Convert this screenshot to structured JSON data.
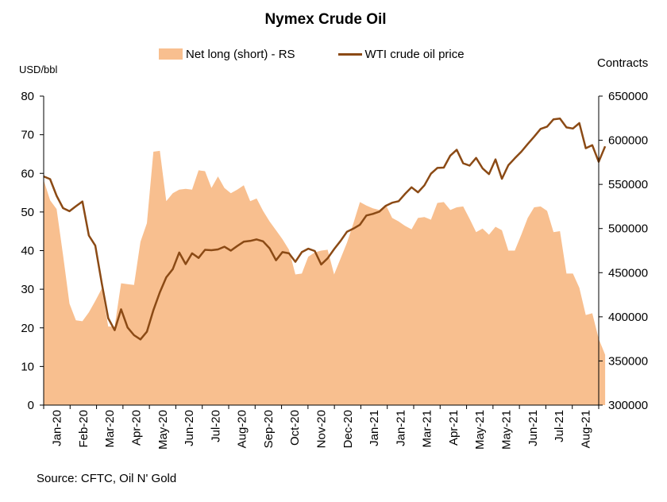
{
  "chart_data": {
    "type": "area+line",
    "title": "Nymex Crude Oil",
    "ylabel_left": "USD/bbl",
    "ylabel_right": "Contracts",
    "ylim_left": [
      0,
      80
    ],
    "yticks_left": [
      "0",
      "10",
      "20",
      "30",
      "40",
      "50",
      "60",
      "70",
      "80"
    ],
    "ylim_right": [
      300000,
      650000
    ],
    "yticks_right": [
      "300000",
      "350000",
      "400000",
      "450000",
      "500000",
      "550000",
      "600000",
      "650000"
    ],
    "x_tick_labels": [
      "Jan-20",
      "Feb-20",
      "Mar-20",
      "Apr-20",
      "May-20",
      "Jun-20",
      "Jul-20",
      "Aug-20",
      "Sep-20",
      "Oct-20",
      "Nov-20",
      "Dec-20",
      "Jan-21",
      "Jan-21",
      "Mar-21",
      "Apr-21",
      "May-21",
      "May-21",
      "Jun-21",
      "Jul-21",
      "Aug-21"
    ],
    "x_range_weeks": [
      0,
      86
    ],
    "grid": false,
    "legend_position": "top",
    "series": [
      {
        "name": "Net long (short) - RS",
        "kind": "area",
        "axis": "right",
        "color": "#F8BF8F",
        "values": [
          555000,
          532000,
          522000,
          470000,
          415000,
          396000,
          395000,
          405000,
          418000,
          432000,
          389000,
          389000,
          438000,
          437000,
          436000,
          485000,
          506000,
          587000,
          588000,
          531000,
          540000,
          544000,
          545000,
          544000,
          566000,
          565000,
          546000,
          559000,
          546000,
          540000,
          544000,
          549000,
          531000,
          534000,
          520000,
          508000,
          498000,
          488000,
          476000,
          448000,
          449000,
          468000,
          473000,
          475000,
          476000,
          448000,
          466000,
          484000,
          506000,
          530000,
          526000,
          523000,
          521000,
          527000,
          512000,
          508000,
          503000,
          499000,
          512000,
          513000,
          510000,
          529000,
          530000,
          521000,
          524000,
          525000,
          511000,
          496000,
          500000,
          493000,
          502000,
          498000,
          475000,
          475000,
          493000,
          512000,
          524000,
          525000,
          520000,
          496000,
          497000,
          449000,
          449000,
          433000,
          402000,
          404000,
          375000,
          357000
        ]
      },
      {
        "name": "WTI crude oil price",
        "kind": "line",
        "axis": "left",
        "color": "#8B4A15",
        "values": [
          59.2,
          58.5,
          54.2,
          51.0,
          50.2,
          51.5,
          52.7,
          43.9,
          41.3,
          31.5,
          22.5,
          19.4,
          24.8,
          20.1,
          18.1,
          17.0,
          19.0,
          24.6,
          29.2,
          33.1,
          35.2,
          39.5,
          36.5,
          39.3,
          38.1,
          40.2,
          40.1,
          40.3,
          41.0,
          40.0,
          41.2,
          42.3,
          42.5,
          42.9,
          42.4,
          40.6,
          37.5,
          39.6,
          39.3,
          37.1,
          39.6,
          40.5,
          39.9,
          36.4,
          38.0,
          40.4,
          42.5,
          44.9,
          45.7,
          46.7,
          49.1,
          49.5,
          50.1,
          51.6,
          52.4,
          52.8,
          54.7,
          56.4,
          55.1,
          56.9,
          59.9,
          61.4,
          61.5,
          64.6,
          66.1,
          62.6,
          62.0,
          64.0,
          61.3,
          59.8,
          63.6,
          58.6,
          62.1,
          63.9,
          65.6,
          67.6,
          69.5,
          71.5,
          72.1,
          74.0,
          74.2,
          71.9,
          71.6,
          73.0,
          66.5,
          67.3,
          63.0,
          67.0
        ]
      }
    ]
  },
  "source": "Source: CFTC, Oil N' Gold"
}
